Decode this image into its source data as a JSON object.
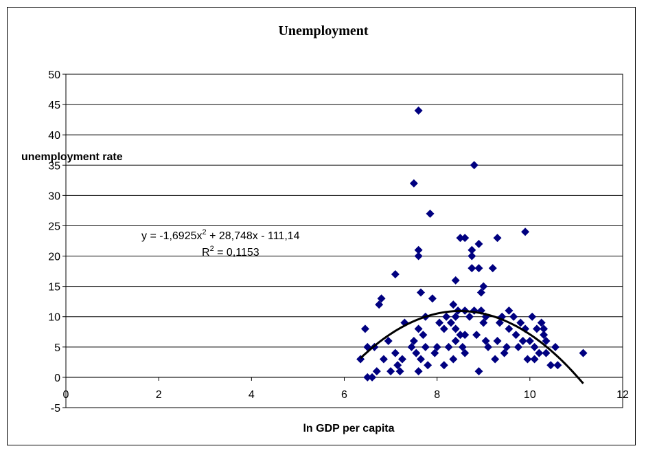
{
  "chart_data": {
    "type": "scatter",
    "title": "Unemployment",
    "xlabel": "ln GDP per capita",
    "ylabel": "unemployment rate",
    "xlim": [
      0,
      12
    ],
    "ylim": [
      -5,
      50
    ],
    "xticks": [
      "0",
      "2",
      "4",
      "6",
      "8",
      "10",
      "12"
    ],
    "yticks": [
      "-5",
      "0",
      "5",
      "10",
      "15",
      "20",
      "25",
      "30",
      "35",
      "40",
      "45",
      "50"
    ],
    "grid": "horizontal",
    "legend": "none",
    "marker": "diamond",
    "marker_color": "#000080",
    "trendline": {
      "type": "polynomial",
      "order": 2,
      "coefficients": [
        -1.6925,
        28.748,
        -111.14
      ],
      "x_range": [
        6.35,
        11.15
      ],
      "color": "#000000",
      "equation_prefix": "y = -1,6925x",
      "equation_sup": "2",
      "equation_suffix": " + 28,748x - 111,14",
      "r2_prefix": "R",
      "r2_sup": "2",
      "r2_suffix": " = 0,1153"
    },
    "points": [
      [
        7.6,
        44
      ],
      [
        8.8,
        35
      ],
      [
        7.5,
        32
      ],
      [
        7.85,
        27
      ],
      [
        9.9,
        24
      ],
      [
        8.5,
        23
      ],
      [
        8.6,
        23
      ],
      [
        9.3,
        23
      ],
      [
        8.9,
        22
      ],
      [
        7.6,
        21
      ],
      [
        8.75,
        21
      ],
      [
        7.6,
        20
      ],
      [
        8.75,
        20
      ],
      [
        8.75,
        18
      ],
      [
        8.9,
        18
      ],
      [
        9.2,
        18
      ],
      [
        7.1,
        17
      ],
      [
        8.4,
        16
      ],
      [
        9.0,
        15
      ],
      [
        7.65,
        14
      ],
      [
        8.95,
        14
      ],
      [
        6.8,
        13
      ],
      [
        7.9,
        13
      ],
      [
        6.75,
        12
      ],
      [
        8.35,
        12
      ],
      [
        8.45,
        11
      ],
      [
        8.6,
        11
      ],
      [
        8.8,
        11
      ],
      [
        8.95,
        11
      ],
      [
        9.55,
        11
      ],
      [
        7.75,
        10
      ],
      [
        8.2,
        10
      ],
      [
        8.4,
        10
      ],
      [
        8.7,
        10
      ],
      [
        9.05,
        10
      ],
      [
        9.4,
        10
      ],
      [
        9.65,
        10
      ],
      [
        10.05,
        10
      ],
      [
        7.3,
        9
      ],
      [
        8.05,
        9
      ],
      [
        8.3,
        9
      ],
      [
        9.0,
        9
      ],
      [
        9.35,
        9
      ],
      [
        9.8,
        9
      ],
      [
        10.25,
        9
      ],
      [
        6.45,
        8
      ],
      [
        7.6,
        8
      ],
      [
        8.15,
        8
      ],
      [
        8.4,
        8
      ],
      [
        9.55,
        8
      ],
      [
        9.9,
        8
      ],
      [
        10.15,
        8
      ],
      [
        10.3,
        8
      ],
      [
        7.7,
        7
      ],
      [
        8.5,
        7
      ],
      [
        8.6,
        7
      ],
      [
        8.85,
        7
      ],
      [
        9.7,
        7
      ],
      [
        10.3,
        7
      ],
      [
        6.95,
        6
      ],
      [
        7.5,
        6
      ],
      [
        8.4,
        6
      ],
      [
        9.05,
        6
      ],
      [
        9.3,
        6
      ],
      [
        9.85,
        6
      ],
      [
        10.0,
        6
      ],
      [
        10.35,
        6
      ],
      [
        6.5,
        5
      ],
      [
        6.65,
        5
      ],
      [
        7.45,
        5
      ],
      [
        7.75,
        5
      ],
      [
        8.0,
        5
      ],
      [
        8.25,
        5
      ],
      [
        8.55,
        5
      ],
      [
        9.1,
        5
      ],
      [
        9.5,
        5
      ],
      [
        9.75,
        5
      ],
      [
        10.1,
        5
      ],
      [
        10.55,
        5
      ],
      [
        7.1,
        4
      ],
      [
        7.55,
        4
      ],
      [
        7.95,
        4
      ],
      [
        8.6,
        4
      ],
      [
        9.45,
        4
      ],
      [
        10.2,
        4
      ],
      [
        10.35,
        4
      ],
      [
        11.15,
        4
      ],
      [
        6.35,
        3
      ],
      [
        6.85,
        3
      ],
      [
        7.25,
        3
      ],
      [
        7.65,
        3
      ],
      [
        8.35,
        3
      ],
      [
        9.25,
        3
      ],
      [
        9.95,
        3
      ],
      [
        10.1,
        3
      ],
      [
        7.15,
        2
      ],
      [
        7.8,
        2
      ],
      [
        8.15,
        2
      ],
      [
        10.45,
        2
      ],
      [
        10.6,
        2
      ],
      [
        6.7,
        1
      ],
      [
        7.0,
        1
      ],
      [
        7.2,
        1
      ],
      [
        7.6,
        1
      ],
      [
        8.9,
        1
      ],
      [
        6.5,
        0
      ],
      [
        6.6,
        0
      ]
    ]
  }
}
